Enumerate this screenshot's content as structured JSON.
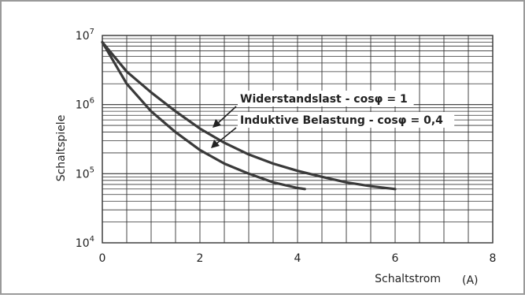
{
  "chart_data": {
    "type": "line",
    "title": "",
    "xlabel": "Schaltstrom",
    "xunit": "(A)",
    "ylabel": "Schaltspiele",
    "xlim": [
      0,
      8
    ],
    "ylim": [
      10000,
      10000000
    ],
    "yscale": "log",
    "grid": true,
    "xticks": [
      "0",
      "2",
      "4",
      "6",
      "8"
    ],
    "yticks": [
      {
        "base": "10",
        "exp": "4"
      },
      {
        "base": "10",
        "exp": "5"
      },
      {
        "base": "10",
        "exp": "6"
      },
      {
        "base": "10",
        "exp": "7"
      }
    ],
    "series": [
      {
        "name": "Widerstandslast - cosφ = 1",
        "x": [
          0,
          0.5,
          1,
          1.5,
          2,
          2.5,
          3,
          3.5,
          4,
          4.5,
          5,
          5.5,
          6
        ],
        "y": [
          8000000,
          3000000,
          1500000,
          800000,
          450000,
          280000,
          190000,
          140000,
          110000,
          90000,
          75000,
          66000,
          60000
        ]
      },
      {
        "name": "Induktive Belastung - cosφ = 0,4",
        "x": [
          0,
          0.5,
          1,
          1.5,
          2,
          2.5,
          3,
          3.5,
          4,
          4.15
        ],
        "y": [
          8000000,
          2000000,
          800000,
          400000,
          220000,
          140000,
          100000,
          75000,
          62000,
          60000
        ]
      }
    ],
    "annotations": [
      {
        "text": "Widerstandslast - cosφ = 1",
        "series": 0
      },
      {
        "text": "Induktive Belastung - cosφ = 0,4",
        "series": 1
      }
    ]
  }
}
